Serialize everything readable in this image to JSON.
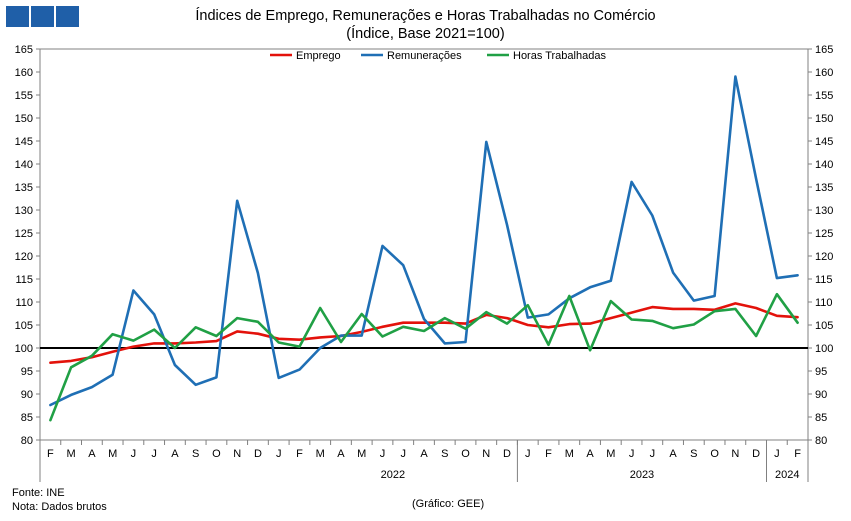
{
  "header": {
    "logo_color": "#1F5FA8",
    "title_line1": "Índices de Emprego, Remunerações e Horas Trabalhadas no Comércio",
    "title_line2": "(Índice, Base 2021=100)"
  },
  "footer": {
    "source": "Fonte: INE",
    "note": "Nota: Dados brutos",
    "credit": "(Gráfico: GEE)"
  },
  "chart_data": {
    "type": "line",
    "title": "Índices de Emprego, Remunerações e Horas Trabalhadas no Comércio",
    "subtitle": "(Índice, Base 2021=100)",
    "ylim": [
      80,
      165
    ],
    "y_ticks": [
      80,
      85,
      90,
      95,
      100,
      105,
      110,
      115,
      120,
      125,
      130,
      135,
      140,
      145,
      150,
      155,
      160,
      165
    ],
    "grid": false,
    "secondary_y_axis": true,
    "reference_line": {
      "value": 100,
      "color": "#000000"
    },
    "legend_position": "top-center",
    "x": [
      "F",
      "M",
      "A",
      "M",
      "J",
      "J",
      "A",
      "S",
      "O",
      "N",
      "D",
      "J",
      "F",
      "M",
      "A",
      "M",
      "J",
      "J",
      "A",
      "S",
      "O",
      "N",
      "D",
      "J",
      "F",
      "M",
      "A",
      "M",
      "J",
      "J",
      "A",
      "S",
      "O",
      "N",
      "D",
      "J",
      "F"
    ],
    "year_groups": [
      {
        "label": "2022",
        "start": 11,
        "end": 22
      },
      {
        "label": "2023",
        "start": 23,
        "end": 34
      },
      {
        "label": "2024",
        "start": 35,
        "end": 36
      }
    ],
    "series": [
      {
        "name": "Emprego",
        "color": "#E3120B",
        "values": [
          96.8,
          97.2,
          98.0,
          99.2,
          100.3,
          101.0,
          101.0,
          101.2,
          101.5,
          103.6,
          103.1,
          102.0,
          101.8,
          102.3,
          102.6,
          103.5,
          104.6,
          105.5,
          105.5,
          105.5,
          105.3,
          107.2,
          106.5,
          105.0,
          104.5,
          105.2,
          105.3,
          106.5,
          107.7,
          108.9,
          108.5,
          108.5,
          108.3,
          109.7,
          108.7,
          107.0,
          106.7
        ]
      },
      {
        "name": "Remunerações",
        "color": "#1F6FB5",
        "values": [
          87.6,
          89.8,
          91.5,
          94.2,
          112.5,
          107.3,
          96.3,
          92.0,
          93.6,
          132.0,
          116.3,
          93.5,
          95.3,
          100.0,
          102.7,
          102.7,
          122.2,
          118.0,
          106.3,
          101.0,
          101.3,
          144.8,
          126.8,
          106.6,
          107.3,
          110.8,
          113.2,
          114.6,
          136.1,
          128.8,
          116.4,
          110.3,
          111.3,
          159.0,
          136.8,
          115.2,
          115.8
        ]
      },
      {
        "name": "Horas Trabalhadas",
        "color": "#20A045",
        "values": [
          84.3,
          95.8,
          98.3,
          103.0,
          101.6,
          104.0,
          100.0,
          104.5,
          102.6,
          106.5,
          105.7,
          101.2,
          100.3,
          108.7,
          101.3,
          107.4,
          102.5,
          104.6,
          103.7,
          106.5,
          104.2,
          107.8,
          105.3,
          109.3,
          100.7,
          111.3,
          99.5,
          110.2,
          106.2,
          105.9,
          104.3,
          105.1,
          108.0,
          108.5,
          102.6,
          111.7,
          105.5
        ]
      }
    ]
  }
}
